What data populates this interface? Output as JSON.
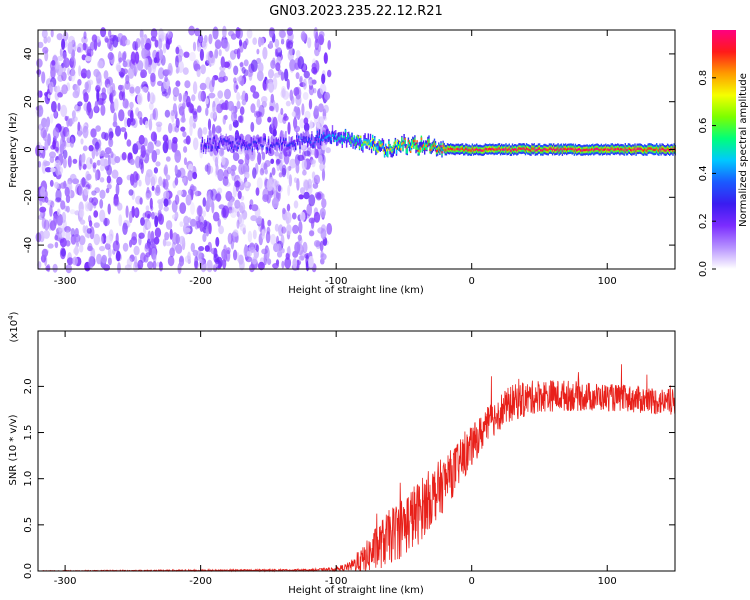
{
  "title": "GN03.2023.235.22.12.R21",
  "colors": {
    "snr_line": "#e8201a",
    "colormap": [
      "#ffffff",
      "#b691ff",
      "#7b2cff",
      "#3a1cf0",
      "#1a5aff",
      "#00c8ff",
      "#00ff7a",
      "#7cff00",
      "#f5ff00",
      "#ff9b00",
      "#ff1a1a",
      "#ff0080"
    ]
  },
  "chart_data": [
    {
      "type": "heatmap",
      "xlabel": "Height of straight line (km)",
      "ylabel": "Frequency (Hz)",
      "xlim": [
        -320,
        150
      ],
      "ylim": [
        -50,
        50
      ],
      "xticks": [
        -300,
        -200,
        -100,
        0,
        100
      ],
      "xtick_labels": [
        "-300",
        "-200",
        "-100",
        "0",
        "100"
      ],
      "yticks": [
        -40,
        -20,
        0,
        20,
        40
      ],
      "ytick_labels": [
        "-40",
        "-20",
        "0",
        "20",
        "40"
      ],
      "colorbar": {
        "label": "Normalized spectral amplitude",
        "range": [
          0,
          1
        ],
        "ticks": [
          0.0,
          0.2,
          0.4,
          0.6,
          0.8
        ],
        "tick_labels": [
          "0.0",
          "0.2",
          "0.4",
          "0.6",
          "0.8"
        ]
      },
      "noise_region": {
        "x": [
          -320,
          -105
        ],
        "y": [
          -50,
          50
        ],
        "amplitude": 0.15
      },
      "carrier": {
        "x": [
          -200,
          -170,
          -140,
          -120,
          -105,
          -90,
          -75,
          -60,
          -50,
          -40,
          -30,
          -20,
          0,
          50,
          100,
          150
        ],
        "freq": [
          2,
          2,
          2,
          3,
          5,
          4,
          2,
          0,
          1,
          1,
          1,
          0,
          0,
          0,
          0,
          0
        ],
        "amplitude": [
          0.3,
          0.3,
          0.3,
          0.35,
          0.45,
          0.6,
          0.75,
          0.8,
          0.85,
          0.9,
          0.9,
          0.95,
          1.0,
          1.0,
          1.0,
          1.0
        ]
      }
    },
    {
      "type": "line",
      "xlabel": "Height of straight line (km)",
      "ylabel": "SNR (10 * v/v)",
      "scale_label": "(x10",
      "scale_exponent": "4",
      "scale_suffix": ")",
      "xlim": [
        -320,
        150
      ],
      "ylim": [
        0,
        2.6
      ],
      "xticks": [
        -300,
        -200,
        -100,
        0,
        100
      ],
      "xtick_labels": [
        "-300",
        "-200",
        "-100",
        "0",
        "100"
      ],
      "yticks": [
        0.0,
        0.5,
        1.0,
        1.5,
        2.0
      ],
      "ytick_labels": [
        "0.0",
        "0.5",
        "1.0",
        "1.5",
        "2.0"
      ],
      "series": [
        {
          "x": [
            -320,
            -120,
            -100,
            -90,
            -80,
            -70,
            -60,
            -50,
            -40,
            -30,
            -20,
            -10,
            0,
            10,
            20,
            30,
            50,
            70,
            100,
            130,
            150
          ],
          "mean": [
            0.0,
            0.01,
            0.02,
            0.05,
            0.12,
            0.25,
            0.38,
            0.5,
            0.62,
            0.8,
            0.95,
            1.15,
            1.35,
            1.55,
            1.72,
            1.82,
            1.9,
            1.9,
            1.88,
            1.85,
            1.82
          ],
          "spread": [
            0.005,
            0.01,
            0.02,
            0.05,
            0.15,
            0.25,
            0.3,
            0.35,
            0.35,
            0.32,
            0.3,
            0.25,
            0.22,
            0.2,
            0.2,
            0.2,
            0.18,
            0.17,
            0.15,
            0.15,
            0.15
          ]
        }
      ]
    }
  ]
}
